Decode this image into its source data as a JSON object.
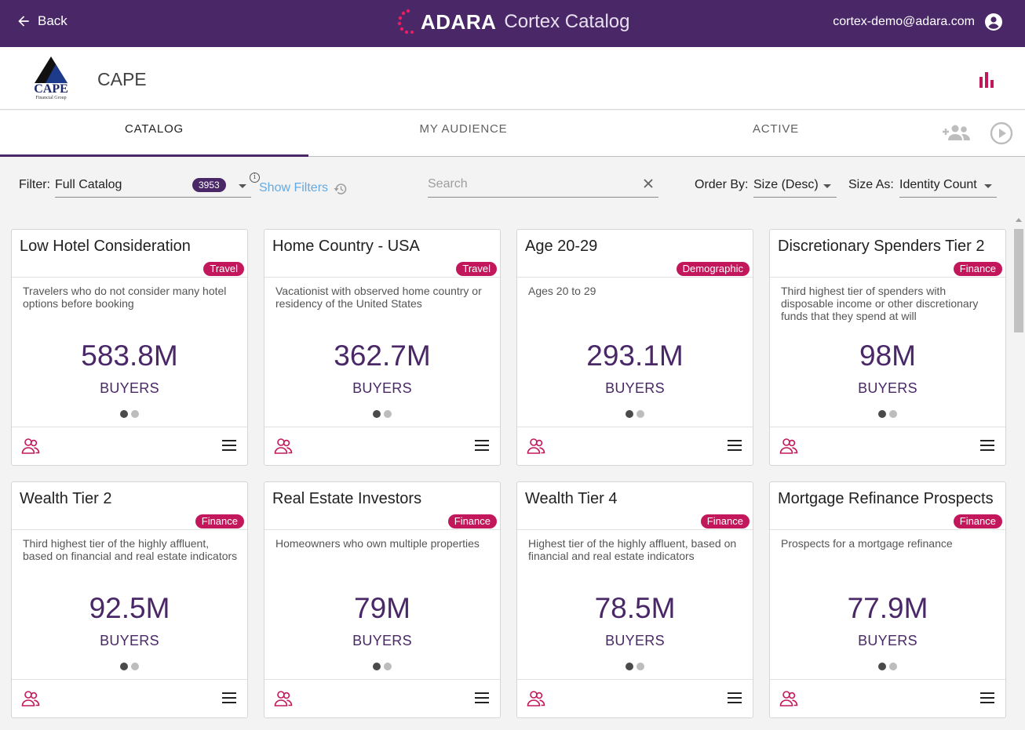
{
  "topbar": {
    "back_label": "Back",
    "brand": "ADARA",
    "product": "Cortex Catalog",
    "user_email": "cortex-demo@adara.com"
  },
  "org": {
    "name": "CAPE",
    "logo_text": "CAPE",
    "logo_subtext": "Financial Group"
  },
  "tabs": [
    {
      "label": "CATALOG",
      "active": true
    },
    {
      "label": "MY AUDIENCE",
      "active": false
    },
    {
      "label": "ACTIVE",
      "active": false
    }
  ],
  "filters": {
    "filter_label": "Filter:",
    "filter_value": "Full Catalog",
    "count": "3953",
    "show_filters": "Show Filters",
    "search_placeholder": "Search",
    "order_label": "Order By:",
    "order_value": "Size (Desc)",
    "size_label": "Size As:",
    "size_value": "Identity Count"
  },
  "cards": [
    {
      "title": "Low Hotel Consideration",
      "tag": "Travel",
      "desc": "Travelers who do not consider many hotel options before booking",
      "value": "583.8M",
      "unit": "BUYERS"
    },
    {
      "title": "Home Country - USA",
      "tag": "Travel",
      "desc": "Vacationist with observed home country or residency of the United States",
      "value": "362.7M",
      "unit": "BUYERS"
    },
    {
      "title": "Age 20-29",
      "tag": "Demographic",
      "desc": "Ages 20 to 29",
      "value": "293.1M",
      "unit": "BUYERS"
    },
    {
      "title": "Discretionary Spenders Tier 2",
      "tag": "Finance",
      "desc": "Third highest tier of spenders with disposable income or other discretionary funds that they spend at will",
      "value": "98M",
      "unit": "BUYERS"
    },
    {
      "title": "Wealth Tier 2",
      "tag": "Finance",
      "desc": "Third highest tier of the highly affluent, based on financial and real estate indicators",
      "value": "92.5M",
      "unit": "BUYERS"
    },
    {
      "title": "Real Estate Investors",
      "tag": "Finance",
      "desc": "Homeowners who own multiple properties",
      "value": "79M",
      "unit": "BUYERS"
    },
    {
      "title": "Wealth Tier 4",
      "tag": "Finance",
      "desc": "Highest tier of the highly affluent, based on financial and real estate indicators",
      "value": "78.5M",
      "unit": "BUYERS"
    },
    {
      "title": "Mortgage Refinance Prospects",
      "tag": "Finance",
      "desc": "Prospects for a mortgage refinance",
      "value": "77.9M",
      "unit": "BUYERS"
    }
  ],
  "colors": {
    "header_bg": "#4a2868",
    "accent_pink": "#c2185b",
    "link_blue": "#64a9e0"
  }
}
